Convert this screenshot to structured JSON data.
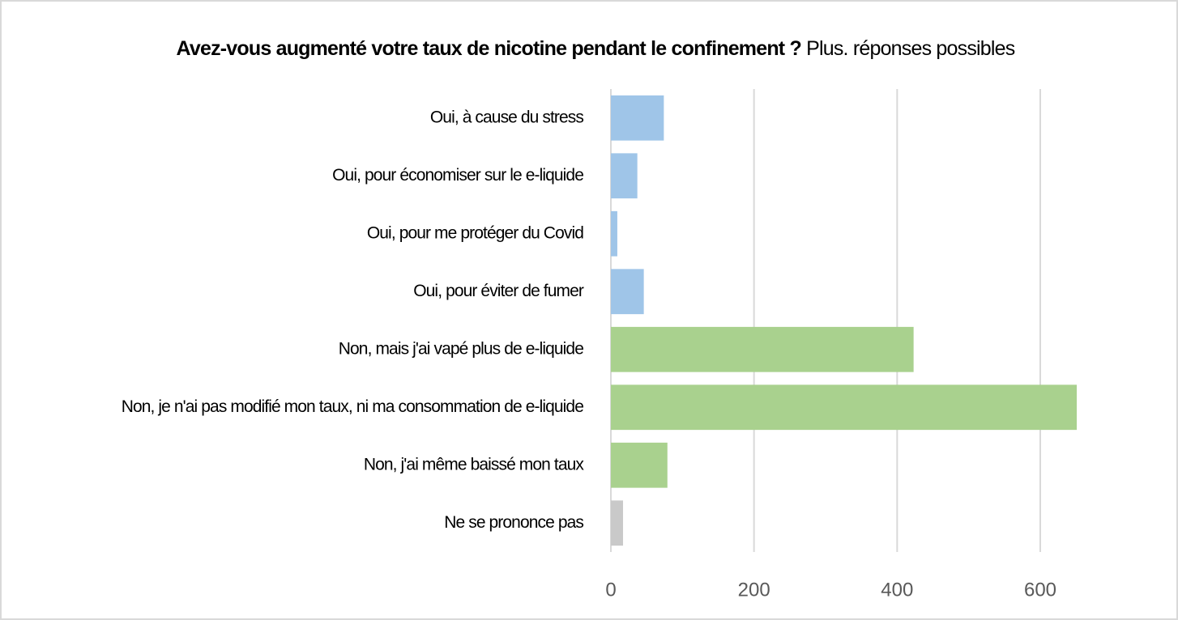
{
  "chart_data": {
    "type": "bar",
    "orientation": "horizontal",
    "title": "Avez-vous augmenté votre taux de nicotine pendant le confinement ?",
    "subtitle": "Plus. réponses possibles",
    "categories": [
      "Oui, à cause du stress",
      "Oui, pour économiser sur le e-liquide",
      "Oui, pour me protéger du Covid",
      "Oui, pour éviter de fumer",
      "Non, mais j'ai vapé plus de e-liquide",
      "Non, je n'ai pas modifié mon taux, ni ma consommation de e-liquide",
      "Non, j'ai même baissé mon taux",
      "Ne se prononce pas"
    ],
    "values": [
      74,
      37,
      9,
      46,
      423,
      651,
      79,
      17
    ],
    "colors": [
      "#9fc5e8",
      "#9fc5e8",
      "#9fc5e8",
      "#9fc5e8",
      "#a9d18e",
      "#a9d18e",
      "#a9d18e",
      "#c9c9c9"
    ],
    "xlim": [
      0,
      700
    ],
    "xticks": [
      0,
      200,
      400,
      600
    ],
    "grid": true
  }
}
